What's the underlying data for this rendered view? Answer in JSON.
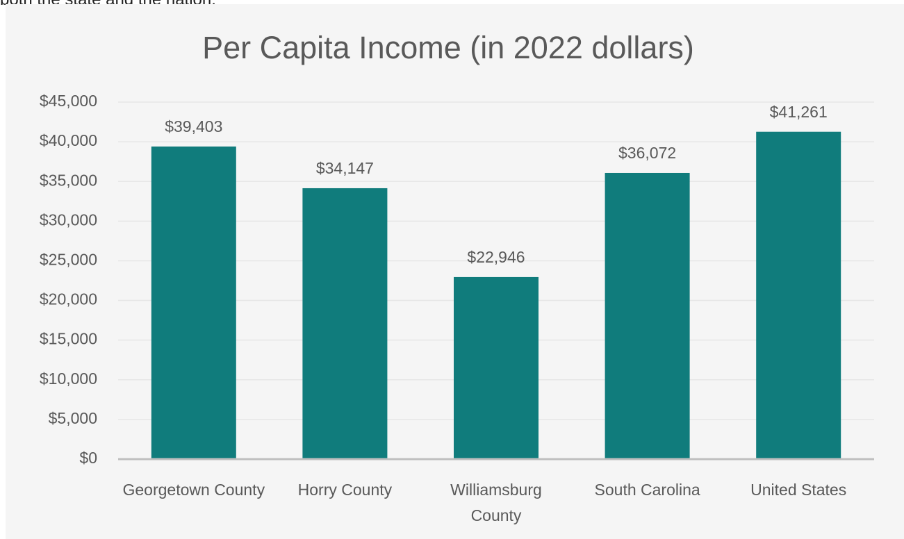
{
  "page_text": "both the state and the nation.",
  "chart_data": {
    "type": "bar",
    "title": "Per Capita Income (in 2022 dollars)",
    "categories": [
      "Georgetown County",
      "Horry County",
      "Williamsburg County",
      "South Carolina",
      "United States"
    ],
    "values": [
      39403,
      34147,
      22946,
      36072,
      41261
    ],
    "value_labels": [
      "$39,403",
      "$34,147",
      "$22,946",
      "$36,072",
      "$41,261"
    ],
    "color": "#107c7c",
    "ylim": [
      0,
      45000
    ],
    "yticks": [
      {
        "value": 0,
        "label": "$0"
      },
      {
        "value": 5000,
        "label": "$5,000"
      },
      {
        "value": 10000,
        "label": "$10,000"
      },
      {
        "value": 15000,
        "label": "$15,000"
      },
      {
        "value": 20000,
        "label": "$20,000"
      },
      {
        "value": 25000,
        "label": "$25,000"
      },
      {
        "value": 30000,
        "label": "$30,000"
      },
      {
        "value": 35000,
        "label": "$35,000"
      },
      {
        "value": 40000,
        "label": "$40,000"
      },
      {
        "value": 45000,
        "label": "$45,000"
      }
    ],
    "grid": true
  }
}
